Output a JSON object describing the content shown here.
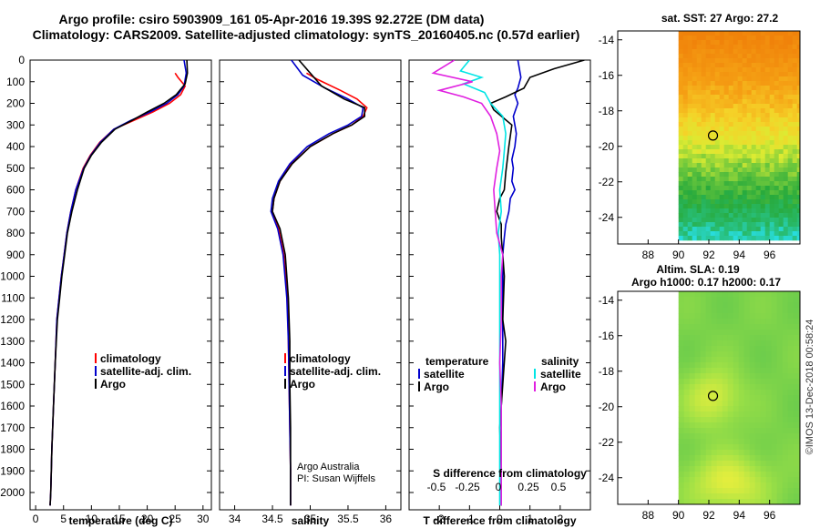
{
  "chart_data": {
    "type": "line",
    "title_line1": "Argo profile: csiro 5903909_161 05-Apr-2016 19.39S 92.272E (DM data)",
    "title_line2": "Climatology: CARS2009. Satellite-adjusted climatology: synTS_20160405.nc (0.57d earlier)",
    "depth_axis": {
      "ylim": [
        0,
        2080
      ],
      "ticks": [
        0,
        100,
        200,
        300,
        400,
        500,
        600,
        700,
        800,
        900,
        1000,
        1100,
        1200,
        1300,
        1400,
        1500,
        1600,
        1700,
        1800,
        1900,
        2000
      ]
    },
    "colors": {
      "climatology": "#ff0000",
      "satellite": "#0000cc",
      "argo": "#000000",
      "sat_salinity": "#00e5e5",
      "argo_salinity": "#e020e0"
    },
    "panels": [
      {
        "id": "temperature",
        "xlabel": "temperature (deg C)",
        "xlim": [
          -1,
          31.5
        ],
        "xticks": [
          0,
          5,
          10,
          15,
          20,
          25,
          30
        ],
        "xtick_labels": [
          "0",
          "5",
          "10",
          "15",
          "20",
          "25",
          "30"
        ],
        "legend": [
          "climatology",
          "satellite-adj. clim.",
          "Argo"
        ],
        "series": [
          {
            "name": "climatology",
            "color": "#ff0000",
            "x": [
              25.0,
              25.5,
              26.8,
              26.0,
              24.0,
              21.0,
              17.5,
              14.0,
              11.5,
              9.8,
              8.5,
              7.2,
              6.3,
              5.6,
              5.1,
              4.6,
              4.2,
              3.8,
              3.5,
              3.2,
              2.9,
              2.7,
              2.6
            ],
            "y": [
              60,
              80,
              120,
              160,
              200,
              240,
              280,
              320,
              380,
              440,
              500,
              600,
              700,
              800,
              900,
              1000,
              1100,
              1200,
              1400,
              1600,
              1800,
              2000,
              2060
            ]
          },
          {
            "name": "satellite-adj. clim.",
            "color": "#0000cc",
            "x": [
              26.6,
              27.0,
              26.6,
              25.5,
              23.5,
              20.5,
              17.0,
              14.0,
              11.6,
              9.9,
              8.6,
              7.2,
              6.3,
              5.6,
              5.1,
              4.6,
              4.2,
              3.8,
              3.5,
              3.2,
              2.9,
              2.7,
              2.6
            ],
            "y": [
              0,
              60,
              120,
              160,
              200,
              240,
              280,
              320,
              380,
              440,
              500,
              600,
              700,
              800,
              900,
              1000,
              1100,
              1200,
              1400,
              1600,
              1800,
              2000,
              2060
            ]
          },
          {
            "name": "Argo",
            "color": "#000000",
            "x": [
              27.1,
              27.2,
              26.8,
              25.2,
              23.0,
              20.0,
              17.2,
              14.2,
              11.8,
              10.0,
              8.7,
              7.5,
              6.5,
              5.7,
              5.2,
              4.7,
              4.3,
              3.9,
              3.5,
              3.2,
              2.9,
              2.7,
              2.6
            ],
            "y": [
              0,
              60,
              110,
              160,
              200,
              240,
              280,
              320,
              380,
              440,
              500,
              600,
              700,
              800,
              900,
              1000,
              1100,
              1200,
              1400,
              1600,
              1800,
              2000,
              2060
            ]
          }
        ]
      },
      {
        "id": "salinity",
        "xlabel": "salinity",
        "xlim": [
          33.8,
          36.2
        ],
        "xticks": [
          34,
          34.5,
          35,
          35.5,
          36
        ],
        "xtick_labels": [
          "34",
          "34.5",
          "35",
          "35.5",
          "36"
        ],
        "legend": [
          "climatology",
          "satellite-adj. clim.",
          "Argo"
        ],
        "credit": [
          "Argo Australia",
          "PI: Susan Wijffels"
        ],
        "series": [
          {
            "name": "climatology",
            "color": "#ff0000",
            "x": [
              34.95,
              35.1,
              35.4,
              35.62,
              35.75,
              35.7,
              35.55,
              35.3,
              35.0,
              34.75,
              34.6,
              34.52,
              34.5,
              34.58,
              34.65,
              34.7,
              34.71,
              34.72,
              34.73,
              34.74,
              34.74
            ],
            "y": [
              60,
              90,
              140,
              180,
              220,
              260,
              300,
              340,
              400,
              480,
              560,
              640,
              700,
              780,
              900,
              1100,
              1300,
              1500,
              1700,
              1900,
              2060
            ]
          },
          {
            "name": "satellite-adj. clim.",
            "color": "#0000cc",
            "x": [
              34.75,
              34.9,
              35.2,
              35.5,
              35.7,
              35.68,
              35.5,
              35.25,
              34.96,
              34.73,
              34.58,
              34.5,
              34.48,
              34.57,
              34.64,
              34.69,
              34.71,
              34.72,
              34.73,
              34.74,
              34.74
            ],
            "y": [
              0,
              70,
              130,
              180,
              220,
              260,
              300,
              340,
              400,
              480,
              560,
              640,
              700,
              780,
              900,
              1100,
              1300,
              1500,
              1700,
              1900,
              2060
            ]
          },
          {
            "name": "Argo",
            "color": "#000000",
            "x": [
              34.85,
              35.0,
              35.15,
              35.45,
              35.72,
              35.72,
              35.55,
              35.3,
              35.0,
              34.76,
              34.6,
              34.52,
              34.5,
              34.6,
              34.67,
              34.71,
              34.73,
              34.73,
              34.74,
              34.74,
              34.74
            ],
            "y": [
              0,
              60,
              120,
              180,
              220,
              260,
              300,
              340,
              400,
              480,
              560,
              640,
              700,
              780,
              900,
              1100,
              1300,
              1500,
              1700,
              1900,
              2060
            ]
          }
        ]
      },
      {
        "id": "differences",
        "xlabel": "T difference from climatology",
        "xlim": [
          -3,
          3
        ],
        "xticks": [
          -2,
          -1,
          0,
          1,
          2
        ],
        "xtick_labels": [
          "-2",
          "-1",
          "0",
          "1",
          "2"
        ],
        "s_axis_label": "S difference from climatology",
        "s_tick_labels": [
          "-0.5",
          "-0.25",
          "0",
          "0.25",
          "0.5"
        ],
        "legend_temperature": {
          "heading": "temperature",
          "items": [
            "satellite",
            "Argo"
          ]
        },
        "legend_salinity": {
          "heading": "salinity",
          "items": [
            "satellite",
            "Argo"
          ]
        },
        "series": [
          {
            "name": "T satellite",
            "color": "#0000cc",
            "x": [
              0.6,
              0.7,
              0.6,
              0.5,
              0.6,
              0.45,
              0.5,
              0.55,
              0.5,
              0.4,
              0.45,
              0.4,
              0.5,
              0.35,
              0.3,
              0.2,
              0.15,
              0.1,
              0.1,
              0.1,
              0.1,
              0.05,
              0.05,
              0.05
            ],
            "y": [
              0,
              80,
              130,
              160,
              200,
              260,
              300,
              340,
              400,
              460,
              500,
              560,
              600,
              640,
              700,
              760,
              820,
              900,
              1000,
              1200,
              1400,
              1600,
              1800,
              2060
            ]
          },
          {
            "name": "T Argo",
            "color": "#000000",
            "x": [
              2.8,
              1.8,
              1.0,
              0.8,
              0.2,
              -0.3,
              -0.2,
              0.4,
              0.3,
              0.25,
              0.2,
              0.15,
              0.0,
              -0.1,
              0.05,
              0.05,
              0.1,
              0.15,
              0.1,
              0.2,
              0.1,
              0.0,
              0.05,
              0.05
            ],
            "y": [
              0,
              40,
              80,
              130,
              170,
              200,
              230,
              300,
              400,
              460,
              520,
              600,
              640,
              700,
              760,
              820,
              900,
              1000,
              1200,
              1300,
              1500,
              1700,
              1900,
              2060
            ]
          },
          {
            "name": "S satellite",
            "color": "#00e5e5",
            "x": [
              -1.0,
              -1.3,
              -0.6,
              -1.2,
              -0.5,
              -0.3,
              0.1,
              0.2,
              0.15,
              0.1,
              0.0,
              0.05,
              -0.05,
              0.0,
              0.0,
              0.0,
              0.0,
              0.0,
              0.0,
              0.0
            ],
            "y": [
              0,
              50,
              80,
              110,
              150,
              200,
              260,
              340,
              420,
              500,
              600,
              700,
              800,
              900,
              1000,
              1200,
              1400,
              1600,
              1800,
              2060
            ]
          },
          {
            "name": "S Argo",
            "color": "#e020e0",
            "x": [
              -1.5,
              -2.2,
              -0.9,
              -2.0,
              -1.2,
              -0.6,
              -0.3,
              -0.1,
              0.0,
              -0.1,
              -0.2,
              -0.15,
              -0.1,
              0.1,
              0.05,
              0.05,
              0.0,
              0.05,
              0.05,
              0.05
            ],
            "y": [
              0,
              60,
              100,
              140,
              170,
              200,
              260,
              340,
              420,
              500,
              600,
              700,
              800,
              900,
              1000,
              1200,
              1400,
              1600,
              1800,
              2060
            ]
          }
        ]
      }
    ],
    "maps": [
      {
        "id": "sst",
        "title": "sat. SST: 27 Argo: 27.2",
        "xlim": [
          86,
          98
        ],
        "ylim": [
          -25.5,
          -13.5
        ],
        "xticks": [
          88,
          90,
          92,
          94,
          96
        ],
        "yticks": [
          -14,
          -16,
          -18,
          -20,
          -22,
          -24
        ],
        "xtick_labels": [
          "88",
          "90",
          "92",
          "94",
          "96"
        ],
        "ytick_labels": [
          "-14",
          "-16",
          "-18",
          "-20",
          "-22",
          "-24"
        ],
        "profile_location": {
          "lon": 92.272,
          "lat": -19.39
        }
      },
      {
        "id": "sla",
        "title_line1": "Altim. SLA: 0.19",
        "title_line2": "Argo h1000: 0.17 h2000: 0.17",
        "xlim": [
          86,
          98
        ],
        "ylim": [
          -25.5,
          -13.5
        ],
        "xticks": [
          88,
          90,
          92,
          94,
          96
        ],
        "yticks": [
          -14,
          -16,
          -18,
          -20,
          -22,
          -24
        ],
        "xtick_labels": [
          "88",
          "90",
          "92",
          "94",
          "96"
        ],
        "ytick_labels": [
          "-14",
          "-16",
          "-18",
          "-20",
          "-22",
          "-24"
        ],
        "profile_location": {
          "lon": 92.272,
          "lat": -19.39
        }
      }
    ],
    "side_credit": "©IMOS 13-Dec-2018 00:58:24"
  }
}
